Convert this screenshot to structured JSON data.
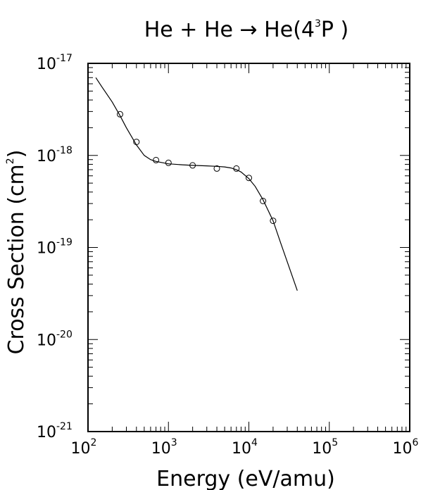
{
  "chart_data": {
    "type": "scatter",
    "title": "He + He → He(4³P)",
    "title_parts": {
      "base": "He + He → He(4",
      "sup": "3",
      "end": "P )"
    },
    "xlabel": "Energy (eV/amu)",
    "ylabel": "Cross Section (cm²)",
    "ylabel_parts": {
      "base": "Cross Section (cm",
      "sup": "2",
      "end": ")"
    },
    "xscale": "log",
    "yscale": "log",
    "xlim": [
      100,
      1000000
    ],
    "ylim": [
      1e-21,
      1e-17
    ],
    "grid": false,
    "legend": "none",
    "x_ticks": [
      {
        "base": "10",
        "exp": "2"
      },
      {
        "base": "10",
        "exp": "3"
      },
      {
        "base": "10",
        "exp": "4"
      },
      {
        "base": "10",
        "exp": "5"
      },
      {
        "base": "10",
        "exp": "6"
      }
    ],
    "y_ticks": [
      {
        "base": "10",
        "exp": "-21"
      },
      {
        "base": "10",
        "exp": "-20"
      },
      {
        "base": "10",
        "exp": "-19"
      },
      {
        "base": "10",
        "exp": "-18"
      },
      {
        "base": "10",
        "exp": "-17"
      }
    ],
    "series": [
      {
        "kind": "points",
        "marker": "open-circle",
        "x": [
          250,
          400,
          700,
          1000,
          2000,
          4000,
          7000,
          10000,
          15000,
          20000
        ],
        "y": [
          2.8e-18,
          1.4e-18,
          8.9e-19,
          8.3e-19,
          7.8e-19,
          7.2e-19,
          7.2e-19,
          5.7e-19,
          3.2e-19,
          1.95e-19
        ]
      },
      {
        "kind": "line",
        "x": [
          125,
          150,
          200,
          250,
          300,
          400,
          500,
          600,
          700,
          1000,
          1500,
          2000,
          3000,
          4000,
          5000,
          6000,
          7000,
          8000,
          10000,
          12000,
          15000,
          20000,
          25000,
          30000,
          40000
        ],
        "y": [
          7e-18,
          5.5e-18,
          3.8e-18,
          2.7e-18,
          2e-18,
          1.3e-18,
          1e-18,
          9e-19,
          8.6e-19,
          8.1e-19,
          7.9e-19,
          7.8e-19,
          7.7e-19,
          7.6e-19,
          7.5e-19,
          7.3e-19,
          7e-19,
          6.6e-19,
          5.6e-19,
          4.6e-19,
          3.3e-19,
          1.95e-19,
          1.1e-19,
          7e-20,
          3.4e-20
        ]
      }
    ]
  }
}
